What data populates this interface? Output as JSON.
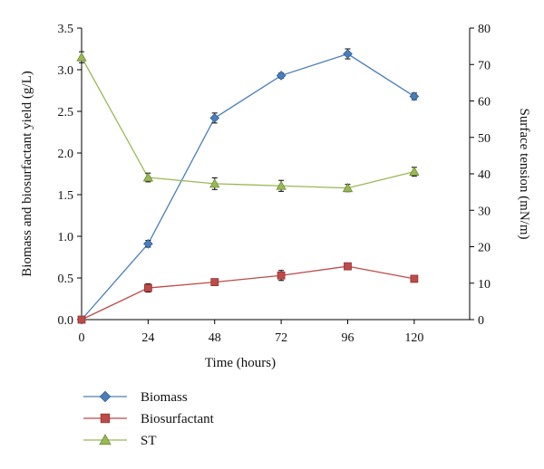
{
  "chart_data": {
    "type": "line",
    "title": "",
    "xlabel": "Time (hours)",
    "ylabel": "Biomass and biosurfactant yield (g/L)",
    "y2label": "Surface tension (mN/m)",
    "x": [
      0,
      24,
      48,
      72,
      96,
      120
    ],
    "xlim": [
      0,
      140
    ],
    "xticks": [
      "0",
      "24",
      "48",
      "72",
      "96",
      "120"
    ],
    "ylim": [
      0,
      3.5
    ],
    "yticks": [
      "0.0",
      "0.5",
      "1.0",
      "1.5",
      "2.0",
      "2.5",
      "3.0",
      "3.5"
    ],
    "y2lim": [
      0,
      80
    ],
    "y2ticks": [
      "0",
      "10",
      "20",
      "30",
      "40",
      "50",
      "60",
      "70",
      "80"
    ],
    "grid": false,
    "legend_position": "bottom-left",
    "series": [
      {
        "name": "Biomass",
        "axis": "left",
        "marker": "diamond",
        "color": "#4a7ebb",
        "values": [
          0.0,
          0.91,
          2.42,
          2.93,
          3.19,
          2.68
        ],
        "errors": [
          0.0,
          0.04,
          0.06,
          0.03,
          0.06,
          0.04
        ]
      },
      {
        "name": "Biosurfactant",
        "axis": "left",
        "marker": "square",
        "color": "#be4b48",
        "values": [
          0.0,
          0.38,
          0.45,
          0.53,
          0.64,
          0.49
        ],
        "errors": [
          0.0,
          0.05,
          0.03,
          0.06,
          0.03,
          0.04
        ]
      },
      {
        "name": "ST",
        "axis": "right",
        "marker": "triangle",
        "color": "#98b954",
        "values": [
          72.0,
          39.0,
          37.3,
          36.7,
          36.1,
          40.6
        ],
        "errors": [
          1.5,
          1.2,
          1.6,
          1.5,
          1.0,
          1.2
        ]
      }
    ]
  }
}
